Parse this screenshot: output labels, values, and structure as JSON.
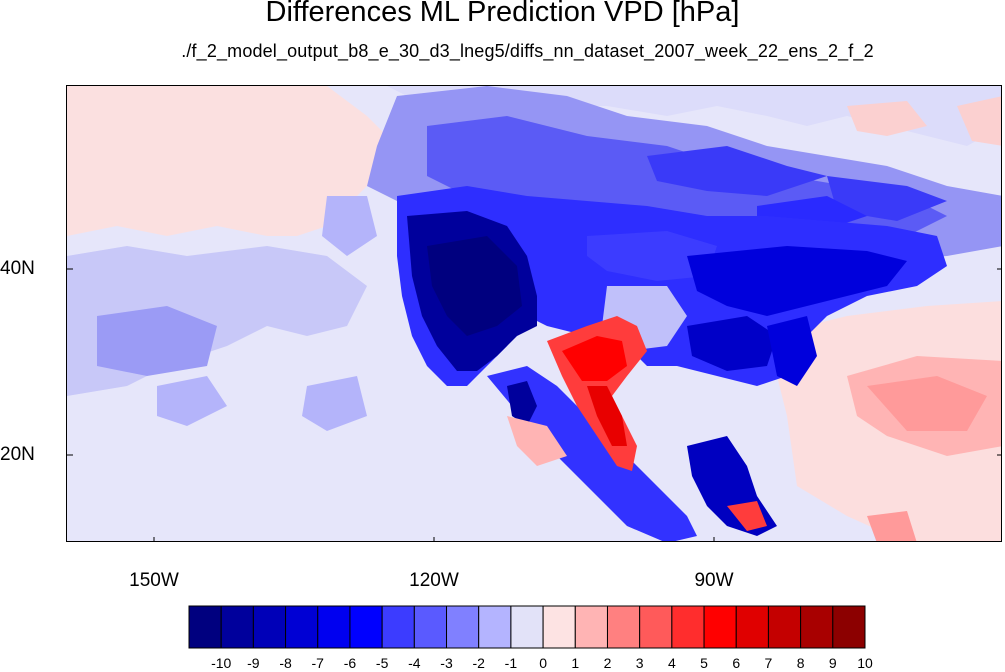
{
  "title": "Differences ML Prediction VPD [hPa]",
  "subtitle": "./f_2_model_output_b8_e_30_d3_lneg5/diffs_nn_dataset_2007_week_22_ens_2_f_2",
  "lat_labels": [
    "40N",
    "20N"
  ],
  "lon_labels": [
    "150W",
    "120W",
    "90W"
  ],
  "colorbar": {
    "labels": [
      "-10",
      "-9",
      "-8",
      "-7",
      "-6",
      "-5",
      "-4",
      "-3",
      "-2",
      "-1",
      "0",
      "1",
      "2",
      "3",
      "4",
      "5",
      "6",
      "7",
      "8",
      "9",
      "10"
    ],
    "colors": [
      "#00007f",
      "#00009c",
      "#0000b8",
      "#0000d4",
      "#0000f0",
      "#0000ff",
      "#3c3cff",
      "#5a5aff",
      "#8080ff",
      "#b4b4ff",
      "#e2e2f8",
      "#fde3e3",
      "#ffb4b4",
      "#ff8080",
      "#ff5a5a",
      "#ff2d2d",
      "#ff0000",
      "#e00000",
      "#c40000",
      "#a80000",
      "#8c0000"
    ]
  },
  "colors": {
    "background_field": "#e6e6fa",
    "ocean_east": "#fcdede"
  }
}
